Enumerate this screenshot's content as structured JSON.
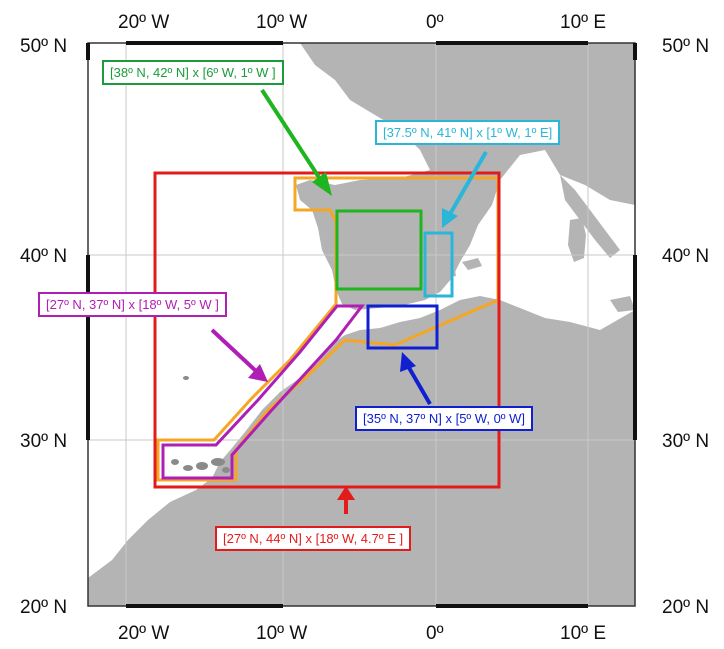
{
  "axes": {
    "top_longitude_labels": [
      "20º W",
      "10º W",
      "0º",
      "10º E"
    ],
    "bottom_longitude_labels": [
      "20º W",
      "10º W",
      "0º",
      "10º E"
    ],
    "left_latitude_labels": [
      "50º N",
      "40º N",
      "30º N",
      "20º N"
    ],
    "right_latitude_labels": [
      "50º N",
      "40º N",
      "30º N",
      "20º N"
    ]
  },
  "regions": {
    "green": {
      "label": "[38º N, 42º N] x [6º W, 1º W ]",
      "color": "#1a9c3a"
    },
    "cyan": {
      "label": "[37.5º N, 41º N] x [1º W, 1º E]",
      "color": "#2ab6d8"
    },
    "purple": {
      "label": "[27º N, 37º N] x [18º W, 5º W ]",
      "color": "#b01fb5"
    },
    "blue": {
      "label": "[35º N, 37º N] x [5º W, 0º W]",
      "color": "#1020d0"
    },
    "red": {
      "label": "[27º N, 44º N] x [18º W, 4.7º E ]",
      "color": "#e31b1b"
    },
    "orange": {
      "color": "#f5a623"
    }
  },
  "map": {
    "land_color": "#b4b4b4",
    "sea_color": "#ffffff"
  }
}
